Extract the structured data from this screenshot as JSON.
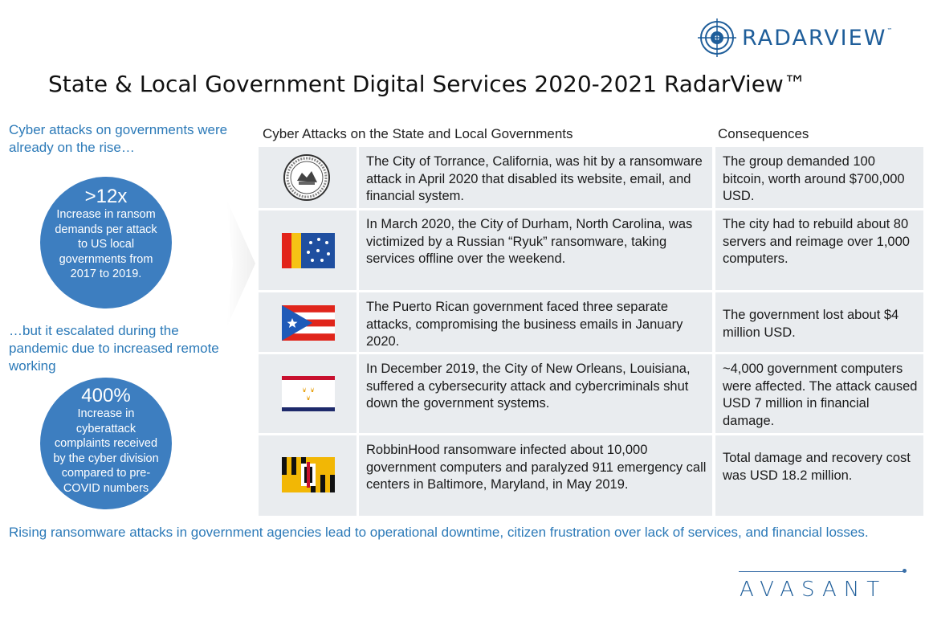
{
  "logo": {
    "text": "RADARVIEW",
    "tm": "™"
  },
  "title": "State & Local Government Digital Services 2020-2021  RadarView™",
  "intro_top": "Cyber attacks on governments were already on the rise…",
  "stat1": {
    "value": ">12x",
    "caption": "Increase in ransom demands per attack to US local governments from 2017 to 2019."
  },
  "intro_mid": "…but it escalated during the pandemic due to increased remote working",
  "stat2": {
    "value": "400%",
    "caption": "Increase in cyberattack complaints received by the cyber division compared to pre-COVID numbers"
  },
  "table": {
    "col_attacks": "Cyber Attacks on the State and Local Governments",
    "col_consequences": "Consequences",
    "rows": [
      {
        "icon": "torrance-city-seal-icon",
        "attack": "The City of Torrance, California, was hit by a ransomware attack in April 2020 that disabled its website, email, and financial system.",
        "consequence": "The group demanded 100 bitcoin, worth around $700,000 USD."
      },
      {
        "icon": "durham-flag-icon",
        "attack": "In March 2020, the City of Durham, North Carolina, was victimized by a Russian “Ryuk” ransomware, taking services offline over the weekend.",
        "consequence": "The city had to rebuild about 80 servers and reimage over 1,000 computers."
      },
      {
        "icon": "puerto-rico-flag-icon",
        "attack": "The Puerto Rican government faced three separate attacks, compromising the business emails in January 2020.",
        "consequence": "The government lost about $4 million USD."
      },
      {
        "icon": "new-orleans-flag-icon",
        "attack": "In December 2019, the City of New Orleans, Louisiana, suffered a cybersecurity attack and cybercriminals shut down the government systems.",
        "consequence": "~4,000 government computers were affected. The attack caused USD 7 million in financial damage."
      },
      {
        "icon": "baltimore-flag-icon",
        "attack": "RobbinHood ransomware infected about 10,000 government computers and paralyzed 911 emergency call centers in Baltimore, Maryland, in May 2019.",
        "consequence": "Total damage and recovery cost was USD 18.2 million."
      }
    ]
  },
  "footer": "Rising ransomware attacks in government agencies lead to operational downtime, citizen frustration over lack of services, and financial losses.",
  "brand": "AVASANT",
  "colors": {
    "accent": "#2c7ab8",
    "circle": "#3d7ec0",
    "cell": "#e9ecef",
    "logo": "#1f5e9a"
  }
}
